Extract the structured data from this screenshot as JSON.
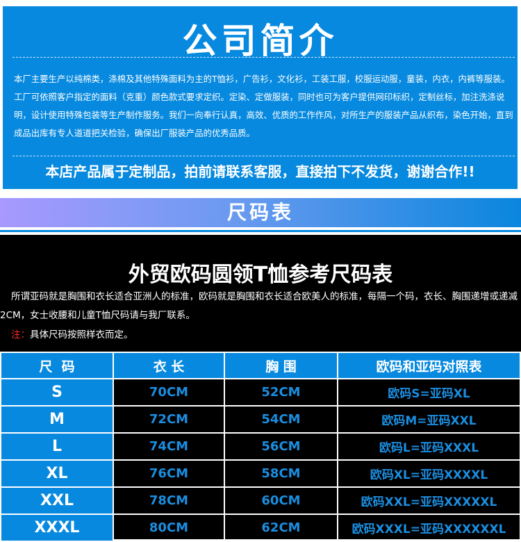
{
  "intro": {
    "title": "公司简介",
    "paragraph": "本厂主要生产以纯棉类，涤棉及其他特殊面料为主的T恤衫，广告衫，文化衫，工装工服，校服运动服，童装，内衣，内裤等服装。工厂可依照客户指定的面料（克重）颜色款式要求定织。定染、定做服装，同时也可为客户提供网印标织，定制丝标，加注洗涤说明，设计使用特殊包装等生产制作服务。我们一向奉行认真，高效、优质的工作作风，对所生产的服装产品从织布，染色开始，直到成品出库有专人道道把关检验，确保出厂服装产品的优秀品质。",
    "notice": "本店产品属于定制品，拍前请联系客服，直接拍下不发货，谢谢合作!!"
  },
  "band": {
    "title": "尺码表"
  },
  "size_chart": {
    "title": "外贸欧码圆领T恤参考尺码表",
    "description": "所谓亚码就是胸围和衣长适合亚洲人的标准，欧码就是胸围和衣长适合欧美人的标准，每隔一个码，衣长、胸围递增或递减2CM，女士收腰和儿童T恤尺码请与我厂联系。",
    "note_label": "注：",
    "note_text": "具体尺码按照样衣而定。",
    "headers": [
      "尺  码",
      "衣 长",
      "胸 围",
      "欧码和亚码对照表"
    ],
    "rows": [
      [
        "S",
        "70CM",
        "52CM",
        "欧码S=亚码XL"
      ],
      [
        "M",
        "72CM",
        "54CM",
        "欧码M=亚码XXL"
      ],
      [
        "L",
        "74CM",
        "56CM",
        "欧码L=亚码XXXL"
      ],
      [
        "XL",
        "76CM",
        "58CM",
        "欧码XL=亚码XXXXL"
      ],
      [
        "XXL",
        "78CM",
        "60CM",
        "欧码XXL=亚码XXXXXL"
      ],
      [
        "XXXL",
        "80CM",
        "62CM",
        "欧码XXXL=亚码XXXXXXL"
      ]
    ]
  },
  "colors": {
    "brand_blue": "#0689df",
    "note_red": "#ff2a2a"
  }
}
